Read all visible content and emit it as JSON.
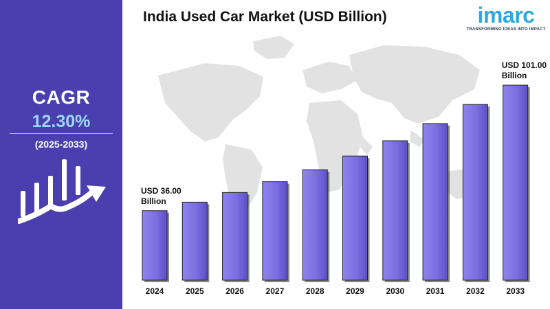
{
  "sidebar": {
    "cagr_label": "CAGR",
    "cagr_value": "12.30%",
    "cagr_period": "(2025-2033)",
    "background_color": "#4b3fb0",
    "value_color": "#9fd8ff",
    "icon": "growth-chart-arrow-icon"
  },
  "logo": {
    "word": "imarc",
    "tagline": "TRANSFORMING IDEAS INTO IMPACT",
    "color": "#2fa8e1"
  },
  "chart_data": {
    "type": "bar",
    "title": "India Used Car Market (USD Billion)",
    "categories": [
      "2024",
      "2025",
      "2026",
      "2027",
      "2028",
      "2029",
      "2030",
      "2031",
      "2032",
      "2033"
    ],
    "values": [
      36.0,
      40.4,
      45.4,
      51.0,
      57.2,
      64.3,
      72.2,
      81.1,
      91.0,
      101.0
    ],
    "annotations": [
      {
        "category": "2024",
        "line1": "USD 36.00",
        "line2": "Billion"
      },
      {
        "category": "2033",
        "line1": "USD 101.00",
        "line2": "Billion"
      }
    ],
    "bar_color": "#7b6fe0",
    "ylim": [
      0,
      101
    ],
    "grid": false,
    "background": "world-map"
  }
}
